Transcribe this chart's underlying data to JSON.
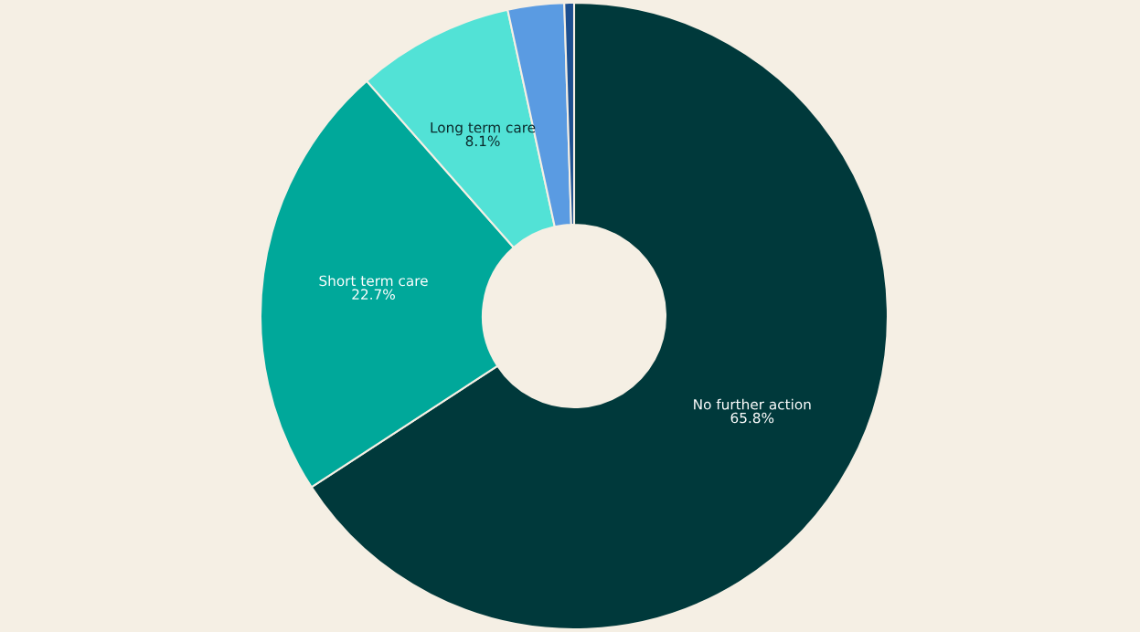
{
  "chart_data": {
    "type": "donut",
    "categories": [
      "No further action",
      "Short term care",
      "Long term care",
      null,
      null
    ],
    "values": [
      65.8,
      22.7,
      8.1,
      2.9,
      0.5
    ],
    "value_labels": [
      "65.8%",
      "22.7%",
      "8.1%",
      null,
      null
    ],
    "colors": [
      "#00393b",
      "#00a89a",
      "#52e2d6",
      "#5a9be2",
      "#1d4f8f"
    ],
    "legend": false
  }
}
